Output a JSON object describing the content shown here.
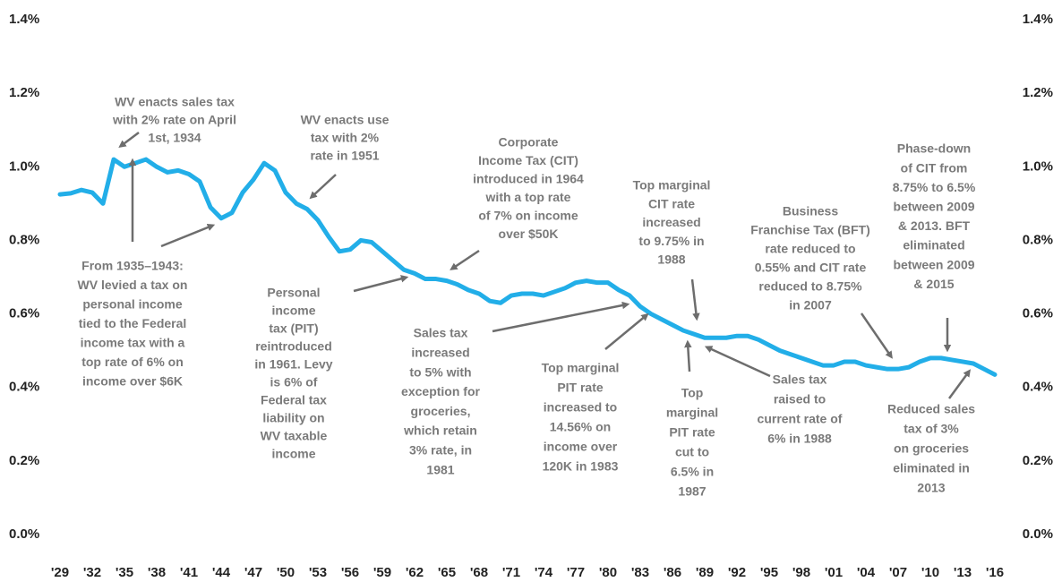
{
  "chart_data": {
    "type": "line",
    "categories": [
      "'29",
      null,
      null,
      "'32",
      null,
      null,
      "'35",
      null,
      null,
      "'38",
      null,
      null,
      "'41",
      null,
      null,
      "'44",
      null,
      null,
      "'47",
      null,
      null,
      "'50",
      null,
      null,
      "'53",
      null,
      null,
      "'56",
      null,
      null,
      "'59",
      null,
      null,
      "'62",
      null,
      null,
      "'65",
      null,
      null,
      "'68",
      null,
      null,
      "'71",
      null,
      null,
      "'74",
      null,
      null,
      "'77",
      null,
      null,
      "'80",
      null,
      null,
      "'83",
      null,
      null,
      "'86",
      null,
      null,
      "'89",
      null,
      null,
      "'92",
      null,
      null,
      "'95",
      null,
      null,
      "'98",
      null,
      null,
      "'01",
      null,
      null,
      "'04",
      null,
      null,
      "'07",
      null,
      null,
      "'10",
      null,
      null,
      "'13",
      null,
      null,
      "'16"
    ],
    "series": [
      {
        "color": "#22aee8",
        "values": [
          0.925,
          0.928,
          0.937,
          0.93,
          0.9,
          1.02,
          1.0,
          1.01,
          1.02,
          1.0,
          0.985,
          0.99,
          0.98,
          0.96,
          0.89,
          0.86,
          0.875,
          0.93,
          0.965,
          1.01,
          0.99,
          0.93,
          0.9,
          0.885,
          0.855,
          0.81,
          0.77,
          0.775,
          0.8,
          0.795,
          0.77,
          0.745,
          0.72,
          0.71,
          0.695,
          0.695,
          0.69,
          0.68,
          0.665,
          0.655,
          0.635,
          0.63,
          0.65,
          0.655,
          0.655,
          0.65,
          0.66,
          0.67,
          0.685,
          0.69,
          0.685,
          0.685,
          0.665,
          0.65,
          0.62,
          0.6,
          0.585,
          0.57,
          0.555,
          0.545,
          0.535,
          0.535,
          0.535,
          0.54,
          0.54,
          0.53,
          0.515,
          0.5,
          0.49,
          0.48,
          0.47,
          0.46,
          0.46,
          0.47,
          0.47,
          0.46,
          0.455,
          0.45,
          0.45,
          0.455,
          0.47,
          0.48,
          0.48,
          0.475,
          0.47,
          0.465,
          0.45,
          0.435
        ]
      }
    ],
    "ylim": [
      0,
      1.4
    ],
    "yticks": [
      {
        "value": 0,
        "label": "0.0%"
      },
      {
        "value": 0.2,
        "label": "0.2%"
      },
      {
        "value": 0.4,
        "label": "0.4%"
      },
      {
        "value": 0.6,
        "label": "0.6%"
      },
      {
        "value": 0.8,
        "label": "0.8%"
      },
      {
        "value": 1.0,
        "label": "1.0%"
      },
      {
        "value": 1.2,
        "label": "1.2%"
      },
      {
        "value": 1.4,
        "label": "1.4%"
      }
    ],
    "y2lim": [
      0,
      1.4
    ],
    "y2ticks": [
      {
        "value": 0,
        "label": "0.0%"
      },
      {
        "value": 0.2,
        "label": "0.2%"
      },
      {
        "value": 0.4,
        "label": "0.4%"
      },
      {
        "value": 0.6,
        "label": "0.6%"
      },
      {
        "value": 0.8,
        "label": "0.8%"
      },
      {
        "value": 1.0,
        "label": "1.0%"
      },
      {
        "value": 1.2,
        "label": "1.2%"
      },
      {
        "value": 1.4,
        "label": "1.4%"
      }
    ],
    "grid": false,
    "annotations": [
      {
        "lines": [
          "WV enacts sales tax",
          "with 2% rate on April",
          "1st, 1934"
        ]
      },
      {
        "lines": [
          "WV enacts use",
          "tax with 2%",
          "rate in 1951"
        ]
      },
      {
        "lines": [
          "Corporate",
          "Income Tax (CIT)",
          "introduced in 1964",
          "with a top rate",
          "of 7% on income",
          "over $50K"
        ]
      },
      {
        "lines": [
          "Top marginal",
          "CIT rate",
          "increased",
          "to 9.75% in",
          "1988"
        ]
      },
      {
        "lines": [
          "Business",
          "Franchise Tax (BFT)",
          "rate reduced to",
          "0.55% and CIT rate",
          "reduced to 8.75%",
          "in 2007"
        ]
      },
      {
        "lines": [
          "Phase-down",
          "of CIT from",
          "8.75% to 6.5%",
          "between 2009",
          "& 2013. BFT",
          "eliminated",
          "between 2009",
          "& 2015"
        ]
      },
      {
        "lines": [
          "From 1935–1943:",
          "WV levied a tax on",
          "personal income",
          "tied to the Federal",
          "income tax with a",
          "top rate of 6% on",
          "income over $6K"
        ]
      },
      {
        "lines": [
          "Personal",
          "income",
          "tax  (PIT)",
          "reintroduced",
          "in 1961. Levy",
          "is 6% of",
          "Federal tax",
          "liability on",
          "WV taxable",
          "income"
        ]
      },
      {
        "lines": [
          "Sales tax",
          "increased",
          "to 5% with",
          "exception for",
          "groceries,",
          "which retain",
          "3% rate, in",
          "1981"
        ]
      },
      {
        "lines": [
          "Top marginal",
          "PIT rate",
          "increased to",
          "14.56% on",
          "income over",
          "120K in 1983"
        ]
      },
      {
        "lines": [
          "Top",
          "marginal",
          "PIT rate",
          "cut to",
          "6.5% in",
          "1987"
        ]
      },
      {
        "lines": [
          "Sales tax",
          "raised to",
          "current rate of",
          "6% in 1988"
        ]
      },
      {
        "lines": [
          "Reduced sales",
          "tax of 3%",
          "on groceries",
          "eliminated in",
          "2013"
        ]
      }
    ]
  }
}
